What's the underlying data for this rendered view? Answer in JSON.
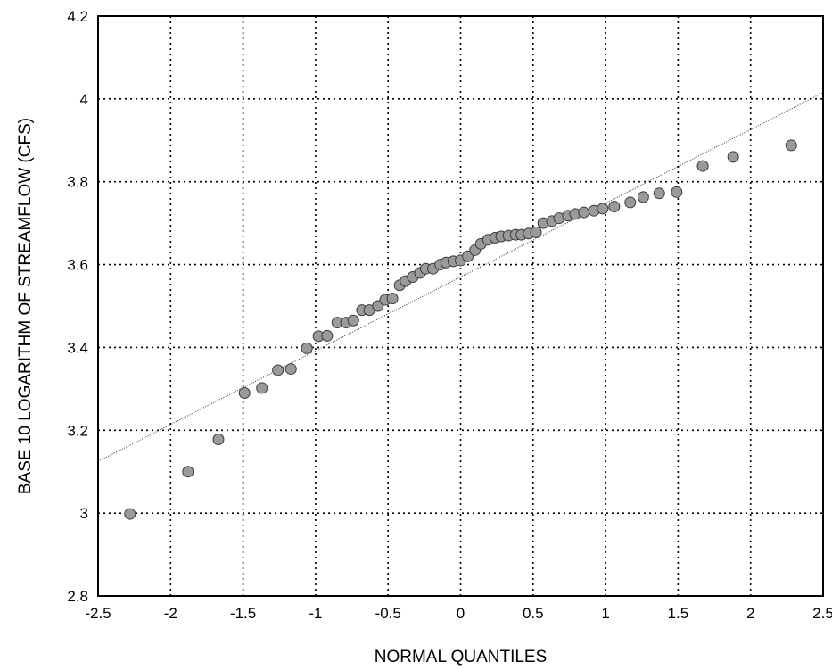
{
  "chart_data": {
    "type": "scatter",
    "title": "",
    "xlabel": "NORMAL QUANTILES",
    "ylabel": "BASE 10 LOGARITHM OF STREAMFLOW (CFS)",
    "xlim": [
      -2.5,
      2.5
    ],
    "ylim": [
      2.8,
      4.2
    ],
    "xticks": [
      -2.5,
      -2,
      -1.5,
      -1,
      -0.5,
      0,
      0.5,
      1,
      1.5,
      2,
      2.5
    ],
    "xtick_labels": [
      "-2.5",
      "-2",
      "-1.5",
      "-1",
      "-0.5",
      "0",
      "0.5",
      "1",
      "1.5",
      "2",
      "2.5"
    ],
    "yticks": [
      2.8,
      3,
      3.2,
      3.4,
      3.6,
      3.8,
      4,
      4.2
    ],
    "ytick_labels": [
      "2.8",
      "3",
      "3.2",
      "3.4",
      "3.6",
      "3.8",
      "4",
      "4.2"
    ],
    "grid": true,
    "marker_color": "#9a9a9a",
    "fit_line": {
      "x": [
        -2.5,
        2.5
      ],
      "y": [
        3.125,
        4.015
      ]
    },
    "points": {
      "x": [
        -2.28,
        -1.88,
        -1.67,
        -1.49,
        -1.37,
        -1.26,
        -1.17,
        -1.06,
        -0.98,
        -0.92,
        -0.85,
        -0.79,
        -0.74,
        -0.68,
        -0.63,
        -0.57,
        -0.52,
        -0.47,
        -0.42,
        -0.38,
        -0.33,
        -0.28,
        -0.24,
        -0.19,
        -0.14,
        -0.1,
        -0.05,
        0.0,
        0.05,
        0.1,
        0.14,
        0.19,
        0.24,
        0.28,
        0.33,
        0.38,
        0.42,
        0.47,
        0.52,
        0.57,
        0.63,
        0.68,
        0.74,
        0.79,
        0.85,
        0.92,
        0.98,
        1.06,
        1.17,
        1.26,
        1.37,
        1.49,
        1.67,
        1.88,
        2.28
      ],
      "y": [
        2.998,
        3.1,
        3.178,
        3.29,
        3.302,
        3.345,
        3.348,
        3.398,
        3.427,
        3.428,
        3.46,
        3.46,
        3.465,
        3.49,
        3.49,
        3.5,
        3.515,
        3.518,
        3.55,
        3.56,
        3.57,
        3.58,
        3.59,
        3.59,
        3.6,
        3.605,
        3.608,
        3.61,
        3.62,
        3.635,
        3.65,
        3.66,
        3.665,
        3.668,
        3.67,
        3.672,
        3.672,
        3.675,
        3.678,
        3.7,
        3.705,
        3.712,
        3.718,
        3.722,
        3.726,
        3.73,
        3.735,
        3.74,
        3.75,
        3.763,
        3.772,
        3.775,
        3.838,
        3.86,
        3.888
      ]
    }
  }
}
